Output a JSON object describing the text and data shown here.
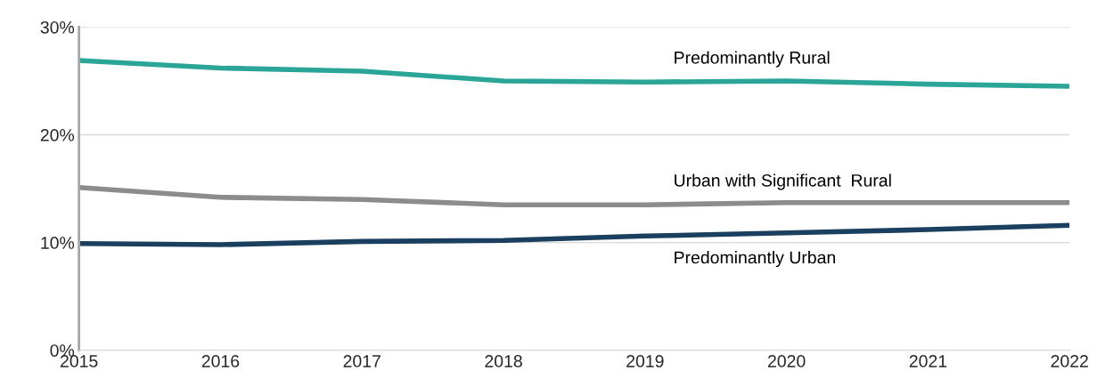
{
  "chart_data": {
    "type": "line",
    "x": [
      2015,
      2016,
      2017,
      2018,
      2019,
      2020,
      2021,
      2022
    ],
    "series": [
      {
        "name": "Predominantly Rural",
        "color": "#2ba597",
        "values": [
          26.9,
          26.2,
          25.9,
          25.0,
          24.9,
          25.0,
          24.7,
          24.5
        ]
      },
      {
        "name": "Urban with Significant  Rural",
        "color": "#8c8c8c",
        "values": [
          15.1,
          14.2,
          14.0,
          13.5,
          13.5,
          13.7,
          13.7,
          13.7
        ]
      },
      {
        "name": "Predominantly Urban",
        "color": "#1b3f5e",
        "values": [
          9.9,
          9.8,
          10.1,
          10.2,
          10.6,
          10.9,
          11.2,
          11.6
        ]
      }
    ],
    "xlim": [
      2015,
      2022
    ],
    "xticks": [
      2015,
      2016,
      2017,
      2018,
      2019,
      2020,
      2021,
      2022
    ],
    "ylim": [
      0,
      30
    ],
    "yticks": [
      {
        "value": 0,
        "label": "0%"
      },
      {
        "value": 10,
        "label": "10%"
      },
      {
        "value": 20,
        "label": "20%"
      },
      {
        "value": 30,
        "label": "30%"
      }
    ],
    "grid": "y",
    "legend": false,
    "marker": "none",
    "line_style": "solid"
  }
}
